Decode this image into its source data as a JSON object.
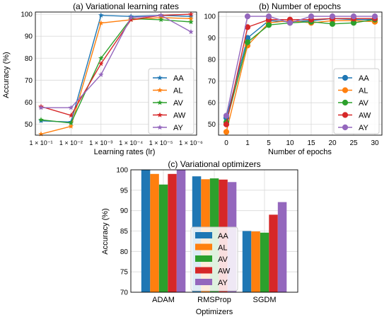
{
  "colors": {
    "AA": "#1f77b4",
    "AL": "#ff7f0e",
    "AV": "#2ca02c",
    "AW": "#d62728",
    "AY": "#9467bd"
  },
  "chart_data": [
    {
      "type": "line",
      "title": "(a) Variational learning rates",
      "xlabel": "Learning rates (lr)",
      "ylabel": "Accuracy (%)",
      "categories": [
        "1 × 10⁻¹",
        "1 × 10⁻²",
        "1 × 10⁻³",
        "1 × 10⁻⁴",
        "1 × 10⁻⁵",
        "1 × 10⁻⁶"
      ],
      "ylim": [
        45,
        101
      ],
      "yticks": [
        "50",
        "60",
        "70",
        "80",
        "90",
        "100"
      ],
      "grid": true,
      "legend_position": "right",
      "series": [
        {
          "name": "AA",
          "values": [
            51.5,
            51.0,
            99.5,
            99.0,
            99.5,
            99.0
          ]
        },
        {
          "name": "AL",
          "values": [
            45.5,
            49.0,
            96.0,
            97.5,
            98.5,
            98.0
          ]
        },
        {
          "name": "AV",
          "values": [
            52.0,
            50.5,
            80.0,
            98.0,
            97.5,
            96.5
          ]
        },
        {
          "name": "AW",
          "values": [
            58.0,
            54.0,
            77.5,
            97.5,
            99.5,
            100.0
          ]
        },
        {
          "name": "AY",
          "values": [
            57.5,
            57.5,
            72.5,
            98.5,
            99.5,
            92.0
          ]
        }
      ]
    },
    {
      "type": "line",
      "title": "(b) Number of epochs",
      "xlabel": "Number of epochs",
      "ylabel": "",
      "categories": [
        "0",
        "1",
        "5",
        "10",
        "15",
        "20",
        "25",
        "30"
      ],
      "ylim": [
        45,
        102
      ],
      "yticks": [
        "50",
        "60",
        "70",
        "80",
        "90",
        "100"
      ],
      "grid": true,
      "legend_position": "right",
      "series": [
        {
          "name": "AA",
          "values": [
            53.0,
            90.0,
            98.0,
            97.5,
            98.0,
            99.0,
            98.5,
            98.5
          ]
        },
        {
          "name": "AL",
          "values": [
            46.5,
            86.5,
            97.0,
            98.0,
            97.0,
            98.0,
            98.0,
            97.5
          ]
        },
        {
          "name": "AV",
          "values": [
            51.0,
            88.0,
            96.0,
            97.0,
            97.5,
            96.5,
            97.0,
            98.5
          ]
        },
        {
          "name": "AW",
          "values": [
            50.0,
            95.0,
            98.5,
            98.5,
            98.5,
            99.0,
            99.0,
            99.0
          ]
        },
        {
          "name": "AY",
          "values": [
            54.0,
            100.0,
            100.0,
            97.0,
            100.0,
            100.0,
            100.0,
            100.0
          ]
        }
      ]
    },
    {
      "type": "bar",
      "title": "(c) Variational optimizers",
      "xlabel": "Optimizers",
      "ylabel": "Accuracy (%)",
      "categories": [
        "ADAM",
        "RMSProp",
        "SGDM"
      ],
      "ylim": [
        70,
        100
      ],
      "yticks": [
        "70",
        "75",
        "80",
        "85",
        "90",
        "95",
        "100"
      ],
      "grid": true,
      "legend_position": "center",
      "series": [
        {
          "name": "AA",
          "values": [
            100.0,
            98.4,
            85.0
          ]
        },
        {
          "name": "AL",
          "values": [
            99.0,
            97.7,
            84.9
          ]
        },
        {
          "name": "AV",
          "values": [
            96.4,
            97.9,
            84.6
          ]
        },
        {
          "name": "AW",
          "values": [
            99.0,
            97.6,
            89.0
          ]
        },
        {
          "name": "AY",
          "values": [
            100.0,
            97.0,
            92.1
          ]
        }
      ]
    }
  ]
}
